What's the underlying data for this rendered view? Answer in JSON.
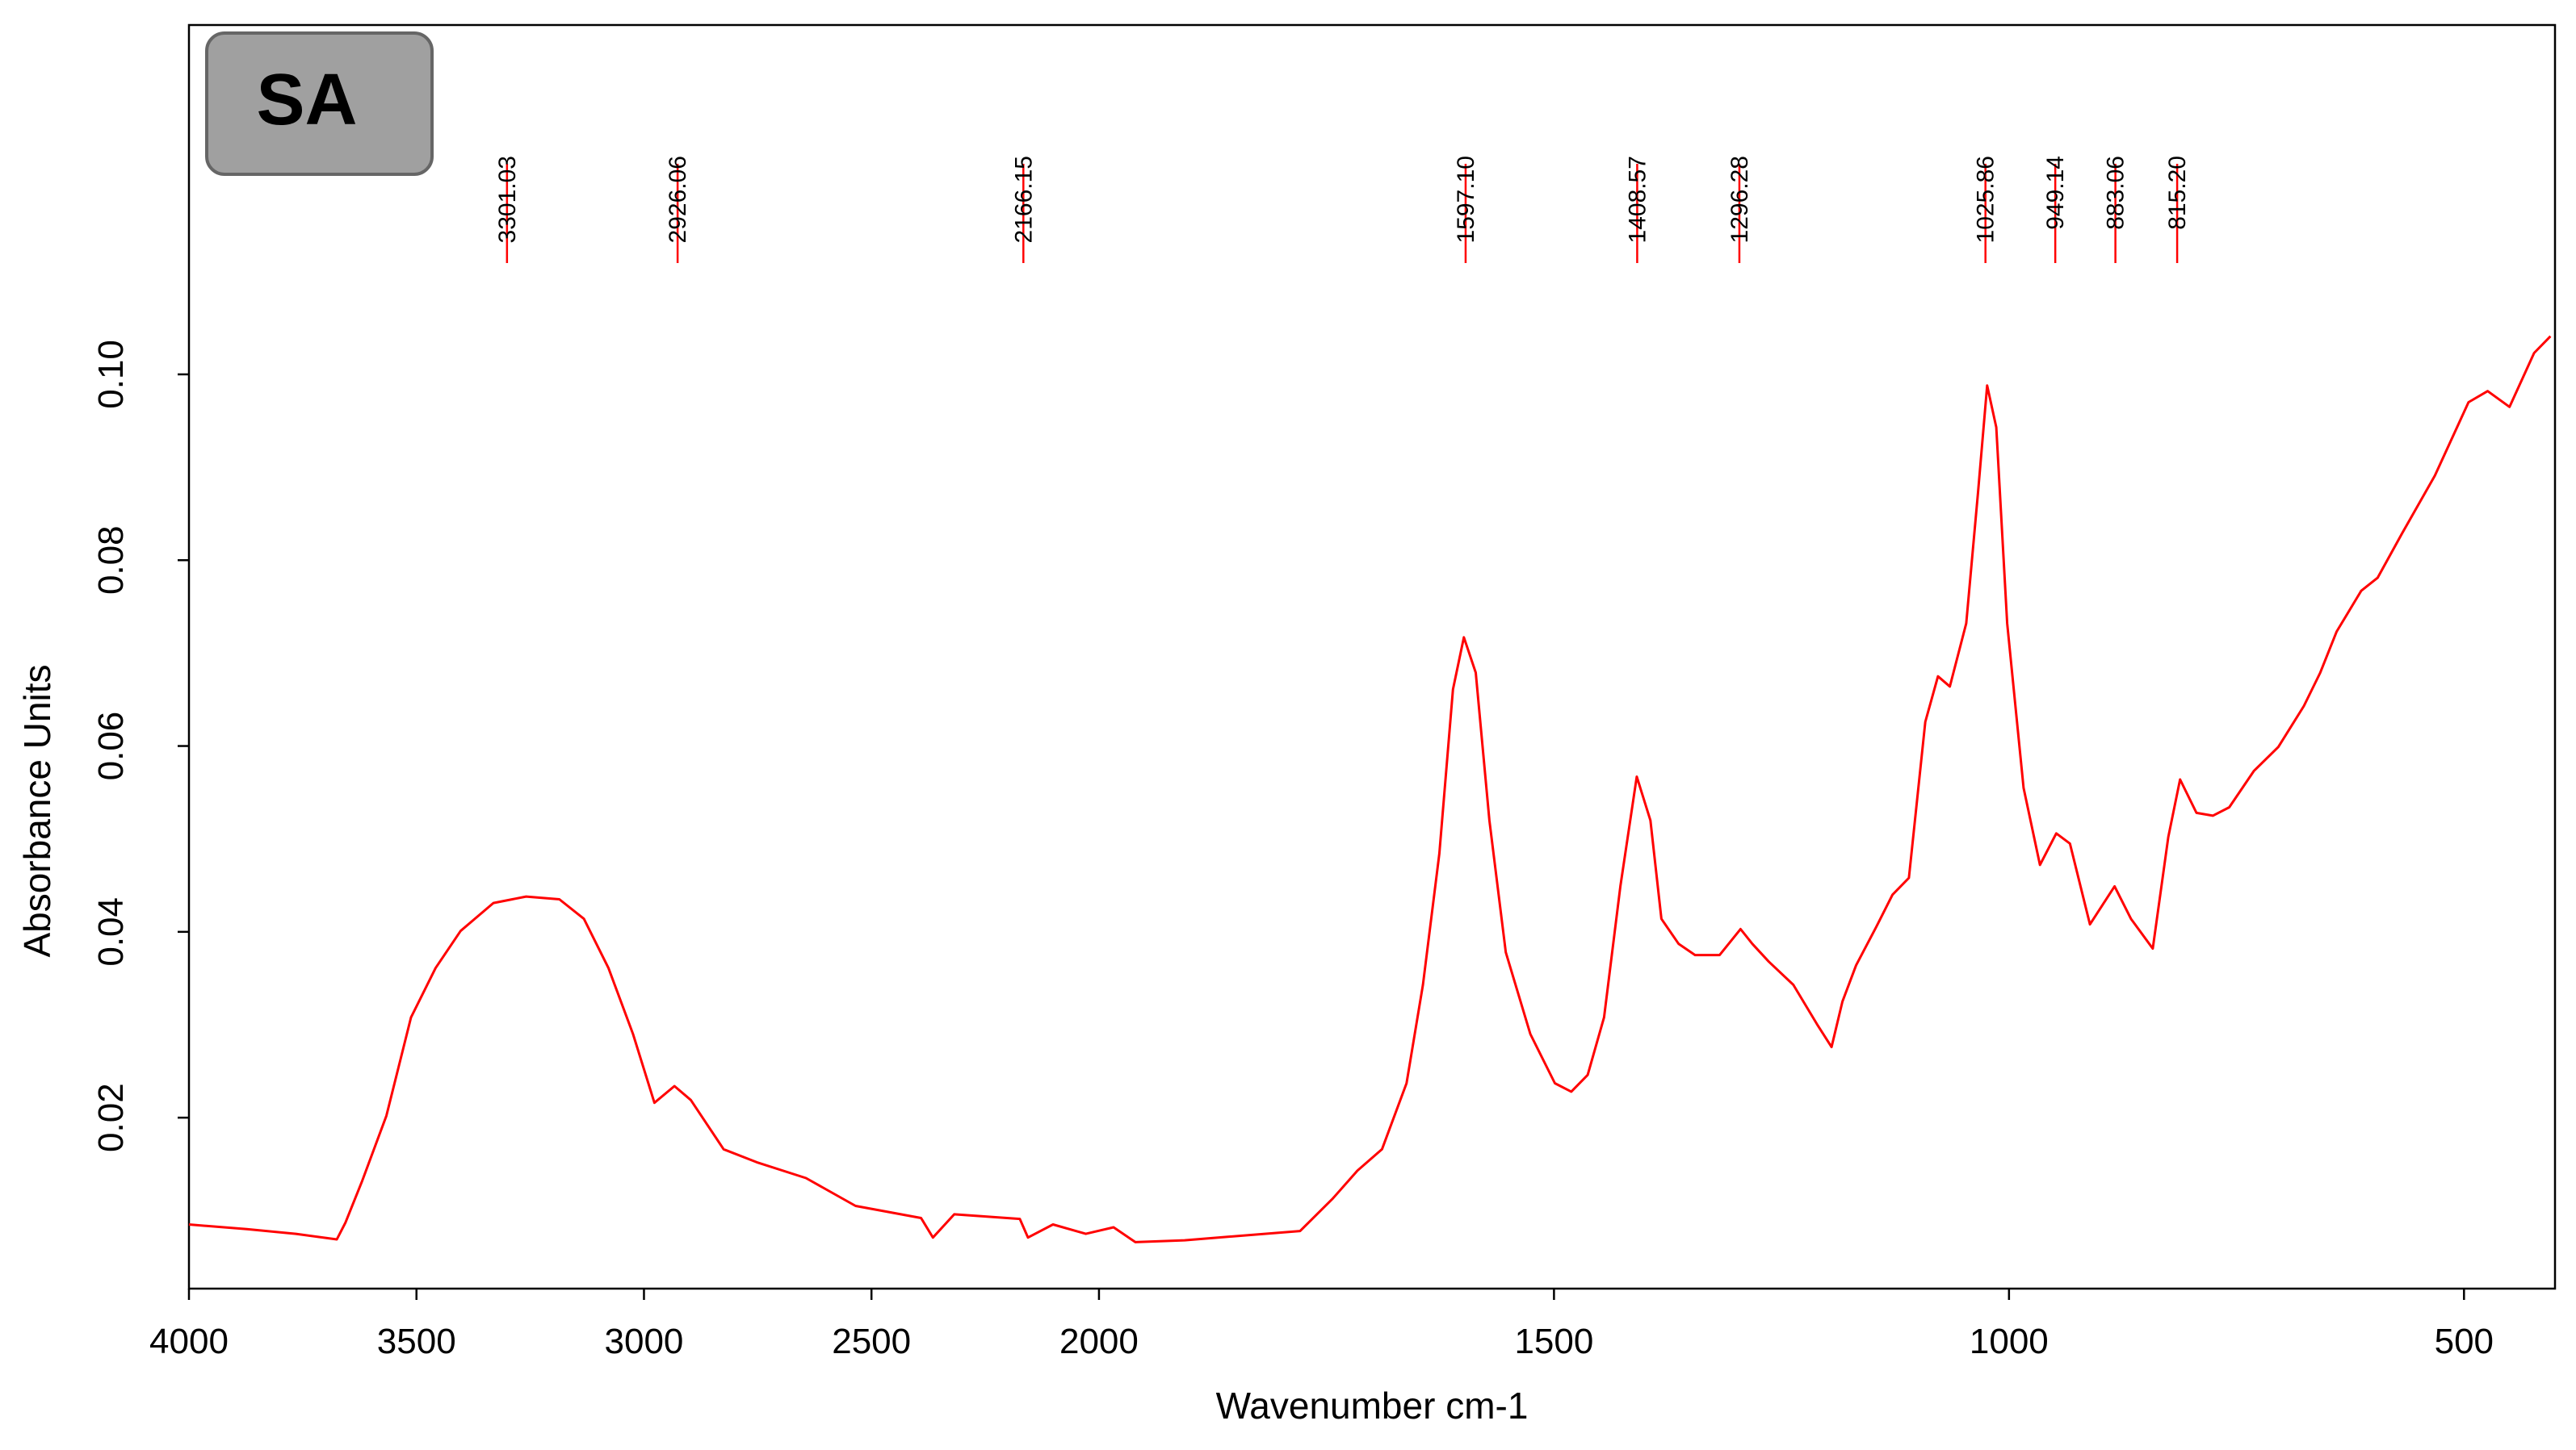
{
  "chart_data": {
    "type": "line",
    "annotation": "SA",
    "xlabel": "Wavenumber cm-1",
    "ylabel": "Absorbance Units",
    "color": "#ff0000",
    "xlim": [
      4000,
      400
    ],
    "xscale_break": 2000,
    "xscale_ratio": 2,
    "xticks": [
      4000,
      3500,
      3000,
      2500,
      2000,
      1500,
      1000,
      500
    ],
    "ylim": [
      0.0016,
      0.1376
    ],
    "yticks": [
      0.02,
      0.04,
      0.06,
      0.08,
      {
        "value": 0.1,
        "label": "0.10"
      }
    ],
    "peaks": [
      {
        "value": 3301.03,
        "label": "3301.03"
      },
      {
        "value": 2926.06,
        "label": "2926.06"
      },
      {
        "value": 2166.15,
        "label": "2166.15"
      },
      {
        "value": 1597.1,
        "label": "1597.10"
      },
      {
        "value": 1408.57,
        "label": "1408.57"
      },
      {
        "value": 1296.28,
        "label": "1296.28"
      },
      {
        "value": 1025.86,
        "label": "1025.86"
      },
      {
        "value": 949.14,
        "label": "949.14"
      },
      {
        "value": 883.06,
        "label": "883.06"
      },
      {
        "value": 815.2,
        "label": "815.20"
      }
    ],
    "x": [
      4000,
      3873,
      3765,
      3675,
      3656,
      3620,
      3566,
      3512,
      3458,
      3403,
      3331,
      3259,
      3186,
      3132,
      3078,
      3024,
      2977,
      2933,
      2897,
      2825,
      2752,
      2644,
      2535,
      2391,
      2365,
      2318,
      2174,
      2156,
      2101,
      2029,
      1984,
      1960,
      1906,
      1779,
      1743,
      1716,
      1689,
      1662,
      1644,
      1626,
      1611,
      1599,
      1586,
      1571,
      1553,
      1526,
      1499,
      1481,
      1463,
      1445,
      1427,
      1409,
      1394,
      1382,
      1363,
      1345,
      1318,
      1295,
      1282,
      1264,
      1237,
      1210,
      1195,
      1183,
      1168,
      1146,
      1128,
      1110,
      1092,
      1078,
      1065,
      1047,
      1034,
      1024,
      1014,
      1002,
      984,
      966,
      948,
      933,
      911,
      884,
      866,
      842,
      825,
      812,
      794,
      776,
      758,
      731,
      704,
      676,
      658,
      640,
      613,
      595,
      568,
      532,
      495,
      474,
      450,
      423,
      405
    ],
    "values": [
      0.0085,
      0.008,
      0.0075,
      0.0069,
      0.0087,
      0.0131,
      0.0202,
      0.0308,
      0.0361,
      0.0401,
      0.0431,
      0.0438,
      0.0435,
      0.0414,
      0.0361,
      0.029,
      0.0216,
      0.0234,
      0.0219,
      0.0166,
      0.0152,
      0.0135,
      0.0105,
      0.0092,
      0.0071,
      0.0096,
      0.0091,
      0.0071,
      0.0085,
      0.0075,
      0.0082,
      0.0066,
      0.0068,
      0.0078,
      0.0113,
      0.0143,
      0.0166,
      0.0237,
      0.0343,
      0.0484,
      0.0661,
      0.0717,
      0.0679,
      0.052,
      0.0378,
      0.029,
      0.0237,
      0.0228,
      0.0246,
      0.0308,
      0.0449,
      0.0567,
      0.052,
      0.0414,
      0.0387,
      0.0375,
      0.0375,
      0.0403,
      0.0387,
      0.0368,
      0.0343,
      0.0299,
      0.0276,
      0.0325,
      0.0364,
      0.0405,
      0.044,
      0.0458,
      0.0626,
      0.0675,
      0.0664,
      0.0732,
      0.0873,
      0.0988,
      0.0943,
      0.0732,
      0.0555,
      0.0472,
      0.0506,
      0.0495,
      0.0408,
      0.0449,
      0.0414,
      0.0382,
      0.0502,
      0.0564,
      0.0528,
      0.0525,
      0.0534,
      0.0573,
      0.0599,
      0.0643,
      0.0679,
      0.0723,
      0.0767,
      0.0781,
      0.0829,
      0.0891,
      0.097,
      0.0982,
      0.0965,
      0.1023,
      0.1041
    ]
  }
}
